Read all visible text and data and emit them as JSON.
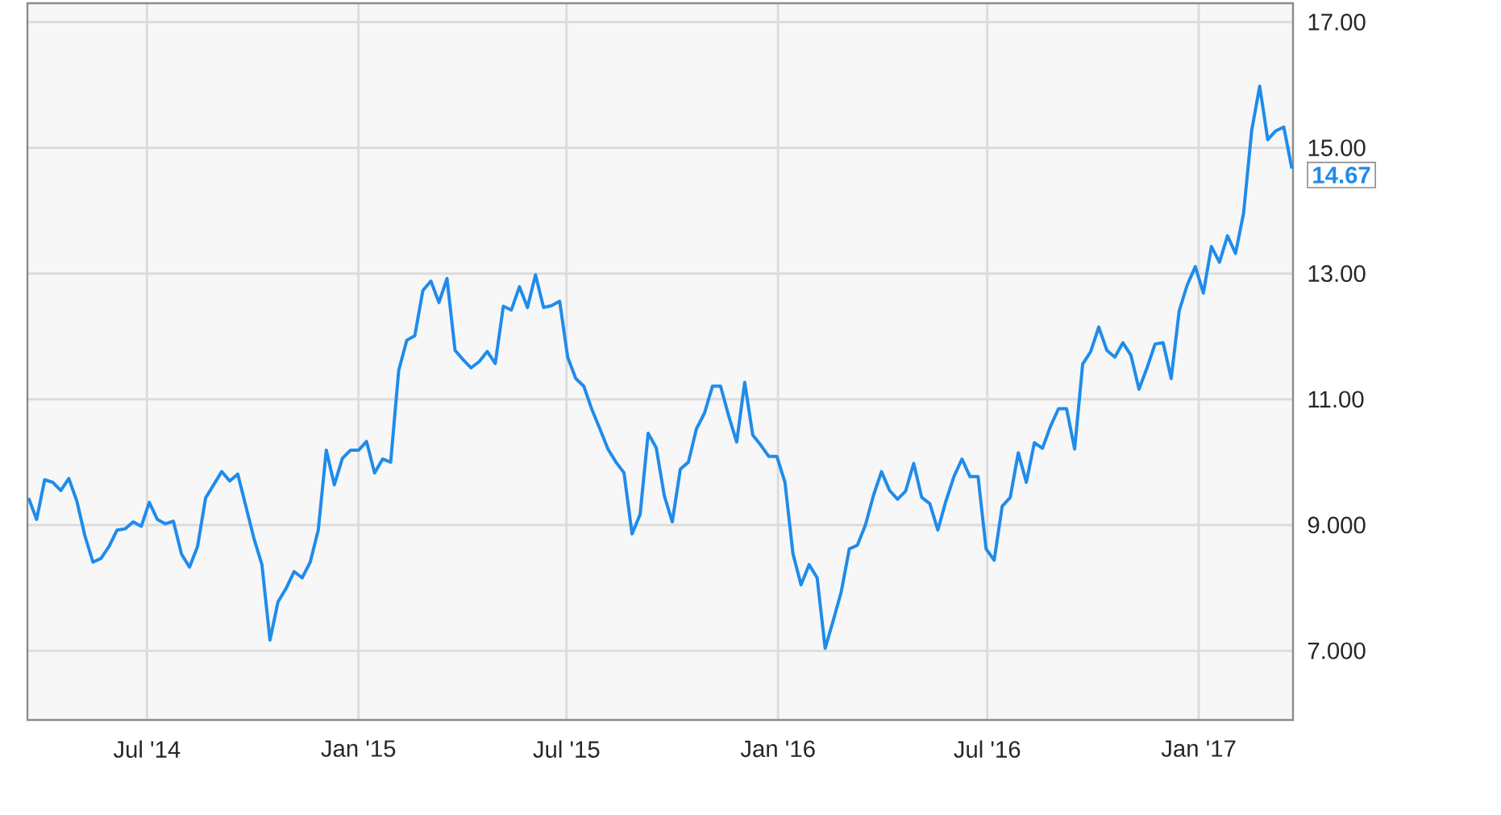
{
  "chart_data": {
    "type": "line",
    "x": [
      "2014-03-20",
      "2014-03-27",
      "2014-04-03",
      "2014-04-10",
      "2014-04-17",
      "2014-04-24",
      "2014-05-01",
      "2014-05-08",
      "2014-05-15",
      "2014-05-22",
      "2014-05-29",
      "2014-06-05",
      "2014-06-12",
      "2014-06-19",
      "2014-06-26",
      "2014-07-03",
      "2014-07-10",
      "2014-07-17",
      "2014-07-24",
      "2014-07-31",
      "2014-08-07",
      "2014-08-14",
      "2014-08-21",
      "2014-08-28",
      "2014-09-04",
      "2014-09-11",
      "2014-09-18",
      "2014-09-25",
      "2014-10-02",
      "2014-10-09",
      "2014-10-16",
      "2014-10-23",
      "2014-10-30",
      "2014-11-06",
      "2014-11-13",
      "2014-11-20",
      "2014-11-27",
      "2014-12-04",
      "2014-12-11",
      "2014-12-18",
      "2014-12-25",
      "2015-01-01",
      "2015-01-08",
      "2015-01-15",
      "2015-01-22",
      "2015-01-29",
      "2015-02-05",
      "2015-02-12",
      "2015-02-19",
      "2015-02-26",
      "2015-03-05",
      "2015-03-12",
      "2015-03-19",
      "2015-03-26",
      "2015-04-02",
      "2015-04-09",
      "2015-04-16",
      "2015-04-23",
      "2015-04-30",
      "2015-05-07",
      "2015-05-14",
      "2015-05-21",
      "2015-05-28",
      "2015-06-04",
      "2015-06-11",
      "2015-06-18",
      "2015-06-25",
      "2015-07-02",
      "2015-07-09",
      "2015-07-16",
      "2015-07-23",
      "2015-07-30",
      "2015-08-06",
      "2015-08-13",
      "2015-08-20",
      "2015-08-27",
      "2015-09-03",
      "2015-09-10",
      "2015-09-17",
      "2015-09-24",
      "2015-10-01",
      "2015-10-08",
      "2015-10-15",
      "2015-10-22",
      "2015-10-29",
      "2015-11-05",
      "2015-11-12",
      "2015-11-19",
      "2015-11-26",
      "2015-12-03",
      "2015-12-10",
      "2015-12-17",
      "2015-12-24",
      "2015-12-31",
      "2016-01-07",
      "2016-01-14",
      "2016-01-21",
      "2016-01-28",
      "2016-02-04",
      "2016-02-11",
      "2016-02-18",
      "2016-02-25",
      "2016-03-03",
      "2016-03-10",
      "2016-03-17",
      "2016-03-24",
      "2016-03-31",
      "2016-04-07",
      "2016-04-14",
      "2016-04-21",
      "2016-04-28",
      "2016-05-05",
      "2016-05-12",
      "2016-05-19",
      "2016-05-26",
      "2016-06-02",
      "2016-06-09",
      "2016-06-16",
      "2016-06-23",
      "2016-06-30",
      "2016-07-07",
      "2016-07-14",
      "2016-07-21",
      "2016-07-28",
      "2016-08-04",
      "2016-08-11",
      "2016-08-18",
      "2016-08-25",
      "2016-09-01",
      "2016-09-08",
      "2016-09-15",
      "2016-09-22",
      "2016-09-29",
      "2016-10-06",
      "2016-10-13",
      "2016-10-20",
      "2016-10-27",
      "2016-11-03",
      "2016-11-10",
      "2016-11-17",
      "2016-11-24",
      "2016-12-01",
      "2016-12-08",
      "2016-12-15",
      "2016-12-22",
      "2016-12-29",
      "2017-01-05",
      "2017-01-12",
      "2017-01-19",
      "2017-01-26",
      "2017-02-02",
      "2017-02-09",
      "2017-02-16",
      "2017-02-23",
      "2017-03-02",
      "2017-03-09",
      "2017-03-16",
      "2017-03-23"
    ],
    "values": [
      9.43,
      9.09,
      9.72,
      9.68,
      9.55,
      9.74,
      9.38,
      8.83,
      8.41,
      8.47,
      8.66,
      8.92,
      8.94,
      9.05,
      8.98,
      9.36,
      9.09,
      9.02,
      9.06,
      8.54,
      8.33,
      8.66,
      9.43,
      9.64,
      9.85,
      9.7,
      9.81,
      9.3,
      8.79,
      8.37,
      7.17,
      7.78,
      7.99,
      8.26,
      8.16,
      8.41,
      8.92,
      10.19,
      9.64,
      10.06,
      10.19,
      10.19,
      10.33,
      9.83,
      10.05,
      10.0,
      11.46,
      11.94,
      12.01,
      12.73,
      12.88,
      12.54,
      12.92,
      11.78,
      11.63,
      11.5,
      11.6,
      11.76,
      11.57,
      12.48,
      12.42,
      12.79,
      12.46,
      12.98,
      12.46,
      12.49,
      12.56,
      11.67,
      11.33,
      11.21,
      10.84,
      10.53,
      10.21,
      10.0,
      9.83,
      8.86,
      9.17,
      10.46,
      10.23,
      9.47,
      9.05,
      9.89,
      10.0,
      10.53,
      10.78,
      11.21,
      11.21,
      10.74,
      10.32,
      11.27,
      10.43,
      10.27,
      10.09,
      10.09,
      9.68,
      8.54,
      8.05,
      8.37,
      8.16,
      7.04,
      7.48,
      7.94,
      8.62,
      8.68,
      9.0,
      9.47,
      9.85,
      9.55,
      9.41,
      9.54,
      9.98,
      9.44,
      9.34,
      8.92,
      9.38,
      9.77,
      10.05,
      9.77,
      9.77,
      8.62,
      8.44,
      9.3,
      9.44,
      10.15,
      9.68,
      10.31,
      10.22,
      10.57,
      10.85,
      10.85,
      10.21,
      11.56,
      11.76,
      12.15,
      11.78,
      11.67,
      11.9,
      11.7,
      11.16,
      11.5,
      11.88,
      11.9,
      11.33,
      12.41,
      12.82,
      13.11,
      12.69,
      13.43,
      13.18,
      13.6,
      13.32,
      13.96,
      15.27,
      15.98,
      15.13,
      15.27,
      15.33,
      14.67
    ],
    "color": "#1f8ceb",
    "xlim": [
      "2014-03-19",
      "2017-03-24"
    ],
    "xticks": [
      {
        "value": "2014-07-01",
        "label": "Jul '14"
      },
      {
        "value": "2015-01-01",
        "label": "Jan '15"
      },
      {
        "value": "2015-07-01",
        "label": "Jul '15"
      },
      {
        "value": "2016-01-01",
        "label": "Jan '16"
      },
      {
        "value": "2016-07-01",
        "label": "Jul '16"
      },
      {
        "value": "2017-01-01",
        "label": "Jan '17"
      }
    ],
    "ylim": [
      5.9,
      17.3
    ],
    "yticks": [
      {
        "value": 7,
        "label": "7.000"
      },
      {
        "value": 9,
        "label": "9.000"
      },
      {
        "value": 11,
        "label": "11.00"
      },
      {
        "value": 13,
        "label": "13.00"
      },
      {
        "value": 15,
        "label": "15.00"
      },
      {
        "value": 17,
        "label": "17.00"
      }
    ],
    "grid": true,
    "annotations": [
      {
        "text": "14.67",
        "x": "2017-03-23",
        "y": 14.67
      }
    ]
  }
}
